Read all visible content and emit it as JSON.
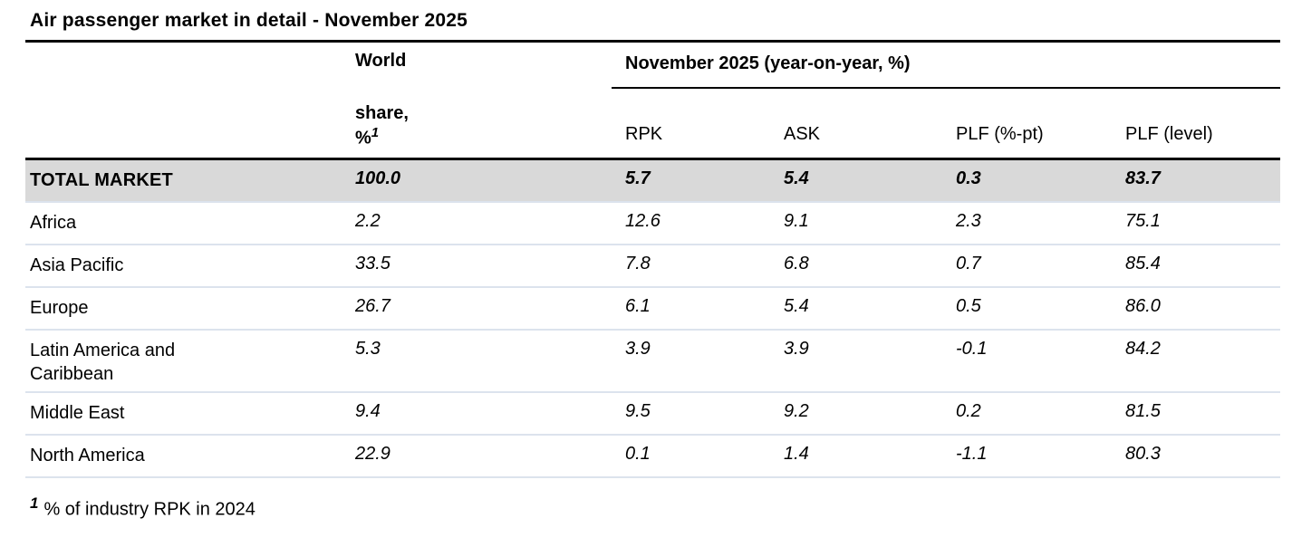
{
  "title": "Air passenger market in detail - November 2025",
  "table": {
    "world_share_header": {
      "line1": "World",
      "line2": "share,",
      "symbol": "%",
      "footnote_ref": "1"
    },
    "group_header": "November 2025 (year-on-year, %)",
    "columns": {
      "rpk": "RPK",
      "ask": "ASK",
      "plf_pt": "PLF (%-pt)",
      "plf_level": "PLF (level)"
    },
    "total_row": {
      "label": "TOTAL MARKET",
      "world_share": "100.0",
      "rpk": "5.7",
      "ask": "5.4",
      "plf_pt": "0.3",
      "plf_level": "83.7"
    },
    "rows": [
      {
        "label": "Africa",
        "world_share": "2.2",
        "rpk": "12.6",
        "ask": "9.1",
        "plf_pt": "2.3",
        "plf_level": "75.1"
      },
      {
        "label": "Asia Pacific",
        "world_share": "33.5",
        "rpk": "7.8",
        "ask": "6.8",
        "plf_pt": "0.7",
        "plf_level": "85.4"
      },
      {
        "label": "Europe",
        "world_share": "26.7",
        "rpk": "6.1",
        "ask": "5.4",
        "plf_pt": "0.5",
        "plf_level": "86.0"
      },
      {
        "label": "Latin America and Caribbean",
        "world_share": "5.3",
        "rpk": "3.9",
        "ask": "3.9",
        "plf_pt": "-0.1",
        "plf_level": "84.2"
      },
      {
        "label": "Middle East",
        "world_share": "9.4",
        "rpk": "9.5",
        "ask": "9.2",
        "plf_pt": "0.2",
        "plf_level": "81.5"
      },
      {
        "label": "North America",
        "world_share": "22.9",
        "rpk": "0.1",
        "ask": "1.4",
        "plf_pt": "-1.1",
        "plf_level": "80.3"
      }
    ]
  },
  "footnote": {
    "marker": "1",
    "text": "% of industry RPK in 2024"
  },
  "colors": {
    "total_row_bg": "#d9d9d9",
    "row_separator": "#dce3ed",
    "rule": "#000000",
    "text": "#000000",
    "background": "#ffffff"
  }
}
